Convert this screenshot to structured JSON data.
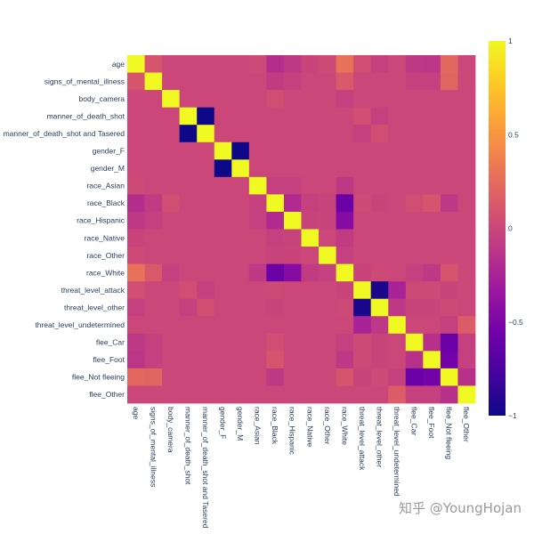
{
  "watermark": "知乎 @YoungHojan",
  "chart_data": {
    "type": "heatmap",
    "labels": [
      "age",
      "signs_of_mental_illness",
      "body_camera",
      "manner_of_death_shot",
      "manner_of_death_shot and Tasered",
      "gender_F",
      "gender_M",
      "race_Asian",
      "race_Black",
      "race_Hispanic",
      "race_Native",
      "race_Other",
      "race_White",
      "threat_level_attack",
      "threat_level_other",
      "threat_level_undetermined",
      "flee_Car",
      "flee_Foot",
      "flee_Not fleeing",
      "flee_Other"
    ],
    "zmin": -1,
    "zmax": 1,
    "colorbar_ticks": [
      1,
      0.5,
      0,
      -0.5,
      -1
    ],
    "colorbar_ticktext": [
      "1",
      "0.5",
      "0",
      "−0.5",
      "−1"
    ],
    "colorscale": [
      "#0d0887",
      "#46039f",
      "#7201a8",
      "#9c179e",
      "#bd3786",
      "#d8576b",
      "#ed7953",
      "#fb9f3a",
      "#fdca26",
      "#f0f921"
    ],
    "matrix": [
      [
        1,
        0.1,
        0,
        0,
        0,
        0,
        0,
        0.02,
        -0.18,
        -0.1,
        -0.02,
        0.02,
        0.28,
        0.05,
        -0.05,
        0,
        -0.1,
        -0.12,
        0.22,
        0
      ],
      [
        0.1,
        1,
        0,
        0,
        0,
        0,
        0,
        0,
        -0.08,
        -0.05,
        0,
        0,
        0.12,
        0,
        0,
        0,
        -0.05,
        -0.05,
        0.2,
        0
      ],
      [
        0,
        0,
        1,
        0,
        0,
        0,
        0,
        0,
        0.05,
        0,
        0,
        0,
        -0.05,
        0,
        0,
        0,
        0,
        0,
        0,
        0
      ],
      [
        0,
        0,
        0,
        1,
        -1,
        0,
        0,
        0,
        0,
        0,
        0,
        0,
        0,
        0.05,
        -0.05,
        0,
        0,
        0,
        0,
        0
      ],
      [
        0,
        0,
        0,
        -1,
        1,
        0,
        0,
        0,
        0,
        0,
        0,
        0,
        0,
        -0.05,
        0.05,
        0,
        0,
        0,
        0,
        0
      ],
      [
        0,
        0,
        0,
        0,
        0,
        1,
        -1,
        0,
        0,
        0,
        0,
        0,
        0,
        0,
        0,
        0,
        0,
        0,
        0,
        0
      ],
      [
        0,
        0,
        0,
        0,
        0,
        -1,
        1,
        0,
        0,
        0,
        0,
        0,
        0,
        0,
        0,
        0,
        0,
        0,
        0,
        0
      ],
      [
        0.02,
        0,
        0,
        0,
        0,
        0,
        0,
        1,
        -0.05,
        -0.05,
        0,
        0,
        -0.1,
        0,
        0,
        0,
        0,
        0,
        0,
        0
      ],
      [
        -0.18,
        -0.08,
        0.05,
        0,
        0,
        0,
        0,
        -0.05,
        1,
        -0.2,
        -0.05,
        -0.03,
        -0.6,
        0.02,
        -0.02,
        0,
        0.05,
        0.1,
        -0.1,
        0
      ],
      [
        -0.1,
        -0.05,
        0,
        0,
        0,
        0,
        0,
        -0.05,
        -0.2,
        1,
        -0.03,
        -0.02,
        -0.45,
        0,
        0,
        0,
        0,
        0,
        0,
        0
      ],
      [
        -0.02,
        0,
        0,
        0,
        0,
        0,
        0,
        0,
        -0.05,
        -0.03,
        1,
        0,
        -0.08,
        0,
        0,
        0,
        0,
        0,
        0,
        0
      ],
      [
        0.02,
        0,
        0,
        0,
        0,
        0,
        0,
        0,
        -0.03,
        -0.02,
        0,
        1,
        -0.05,
        0,
        0,
        0,
        0,
        0,
        0,
        0
      ],
      [
        0.28,
        0.12,
        -0.05,
        0,
        0,
        0,
        0,
        -0.1,
        -0.6,
        -0.45,
        -0.08,
        -0.05,
        1,
        -0.02,
        0.02,
        0,
        -0.05,
        -0.1,
        0.1,
        0
      ],
      [
        0.05,
        0,
        0,
        0.05,
        -0.05,
        0,
        0,
        0,
        0.02,
        0,
        0,
        0,
        -0.02,
        1,
        -0.95,
        -0.25,
        0.02,
        0.02,
        -0.02,
        0
      ],
      [
        -0.05,
        0,
        0,
        -0.05,
        0.05,
        0,
        0,
        0,
        -0.02,
        0,
        0,
        0,
        0.02,
        -0.95,
        1,
        -0.1,
        -0.02,
        -0.02,
        0.02,
        0
      ],
      [
        0,
        0,
        0,
        0,
        0,
        0,
        0,
        0,
        0,
        0,
        0,
        0,
        0,
        -0.25,
        -0.1,
        1,
        0,
        0,
        -0.05,
        0.15
      ],
      [
        -0.1,
        -0.05,
        0,
        0,
        0,
        0,
        0,
        0,
        0.05,
        0,
        0,
        0,
        -0.05,
        0.02,
        -0.02,
        0,
        1,
        -0.15,
        -0.6,
        -0.05
      ],
      [
        -0.12,
        -0.05,
        0,
        0,
        0,
        0,
        0,
        0,
        0.1,
        0,
        0,
        0,
        -0.1,
        0.02,
        -0.02,
        0,
        -0.15,
        1,
        -0.55,
        -0.05
      ],
      [
        0.22,
        0.2,
        0,
        0,
        0,
        0,
        0,
        0,
        -0.1,
        0,
        0,
        0,
        0.1,
        -0.02,
        0.02,
        -0.05,
        -0.6,
        -0.55,
        1,
        -0.15
      ],
      [
        0,
        0,
        0,
        0,
        0,
        0,
        0,
        0,
        0,
        0,
        0,
        0,
        0,
        0,
        0,
        0.15,
        -0.05,
        -0.05,
        -0.15,
        1
      ]
    ]
  }
}
